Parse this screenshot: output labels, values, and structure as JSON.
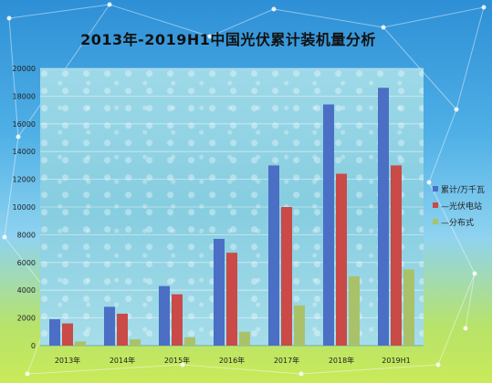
{
  "chart_data": {
    "type": "bar",
    "title": "2013年-2019H1中国光伏累计装机量分析",
    "categories": [
      "2013年",
      "2014年",
      "2015年",
      "2016年",
      "2017年",
      "2018年",
      "2019H1"
    ],
    "series": [
      {
        "name": "累计/万千瓦",
        "color": "#4a6fc4",
        "values": [
          1900,
          2800,
          4300,
          7700,
          13000,
          17400,
          18600
        ]
      },
      {
        "name": "—光伏电站",
        "color": "#c94a47",
        "values": [
          1600,
          2300,
          3700,
          6700,
          10000,
          12400,
          13000
        ]
      },
      {
        "name": "—分布式",
        "color": "#a9c26a",
        "values": [
          300,
          450,
          600,
          1000,
          2900,
          5000,
          5500
        ]
      }
    ],
    "y_ticks": [
      0,
      2000,
      4000,
      6000,
      8000,
      10000,
      12000,
      14000,
      16000,
      18000,
      20000
    ],
    "ylim": [
      0,
      20000
    ],
    "grid": true,
    "legend_position": "right"
  }
}
